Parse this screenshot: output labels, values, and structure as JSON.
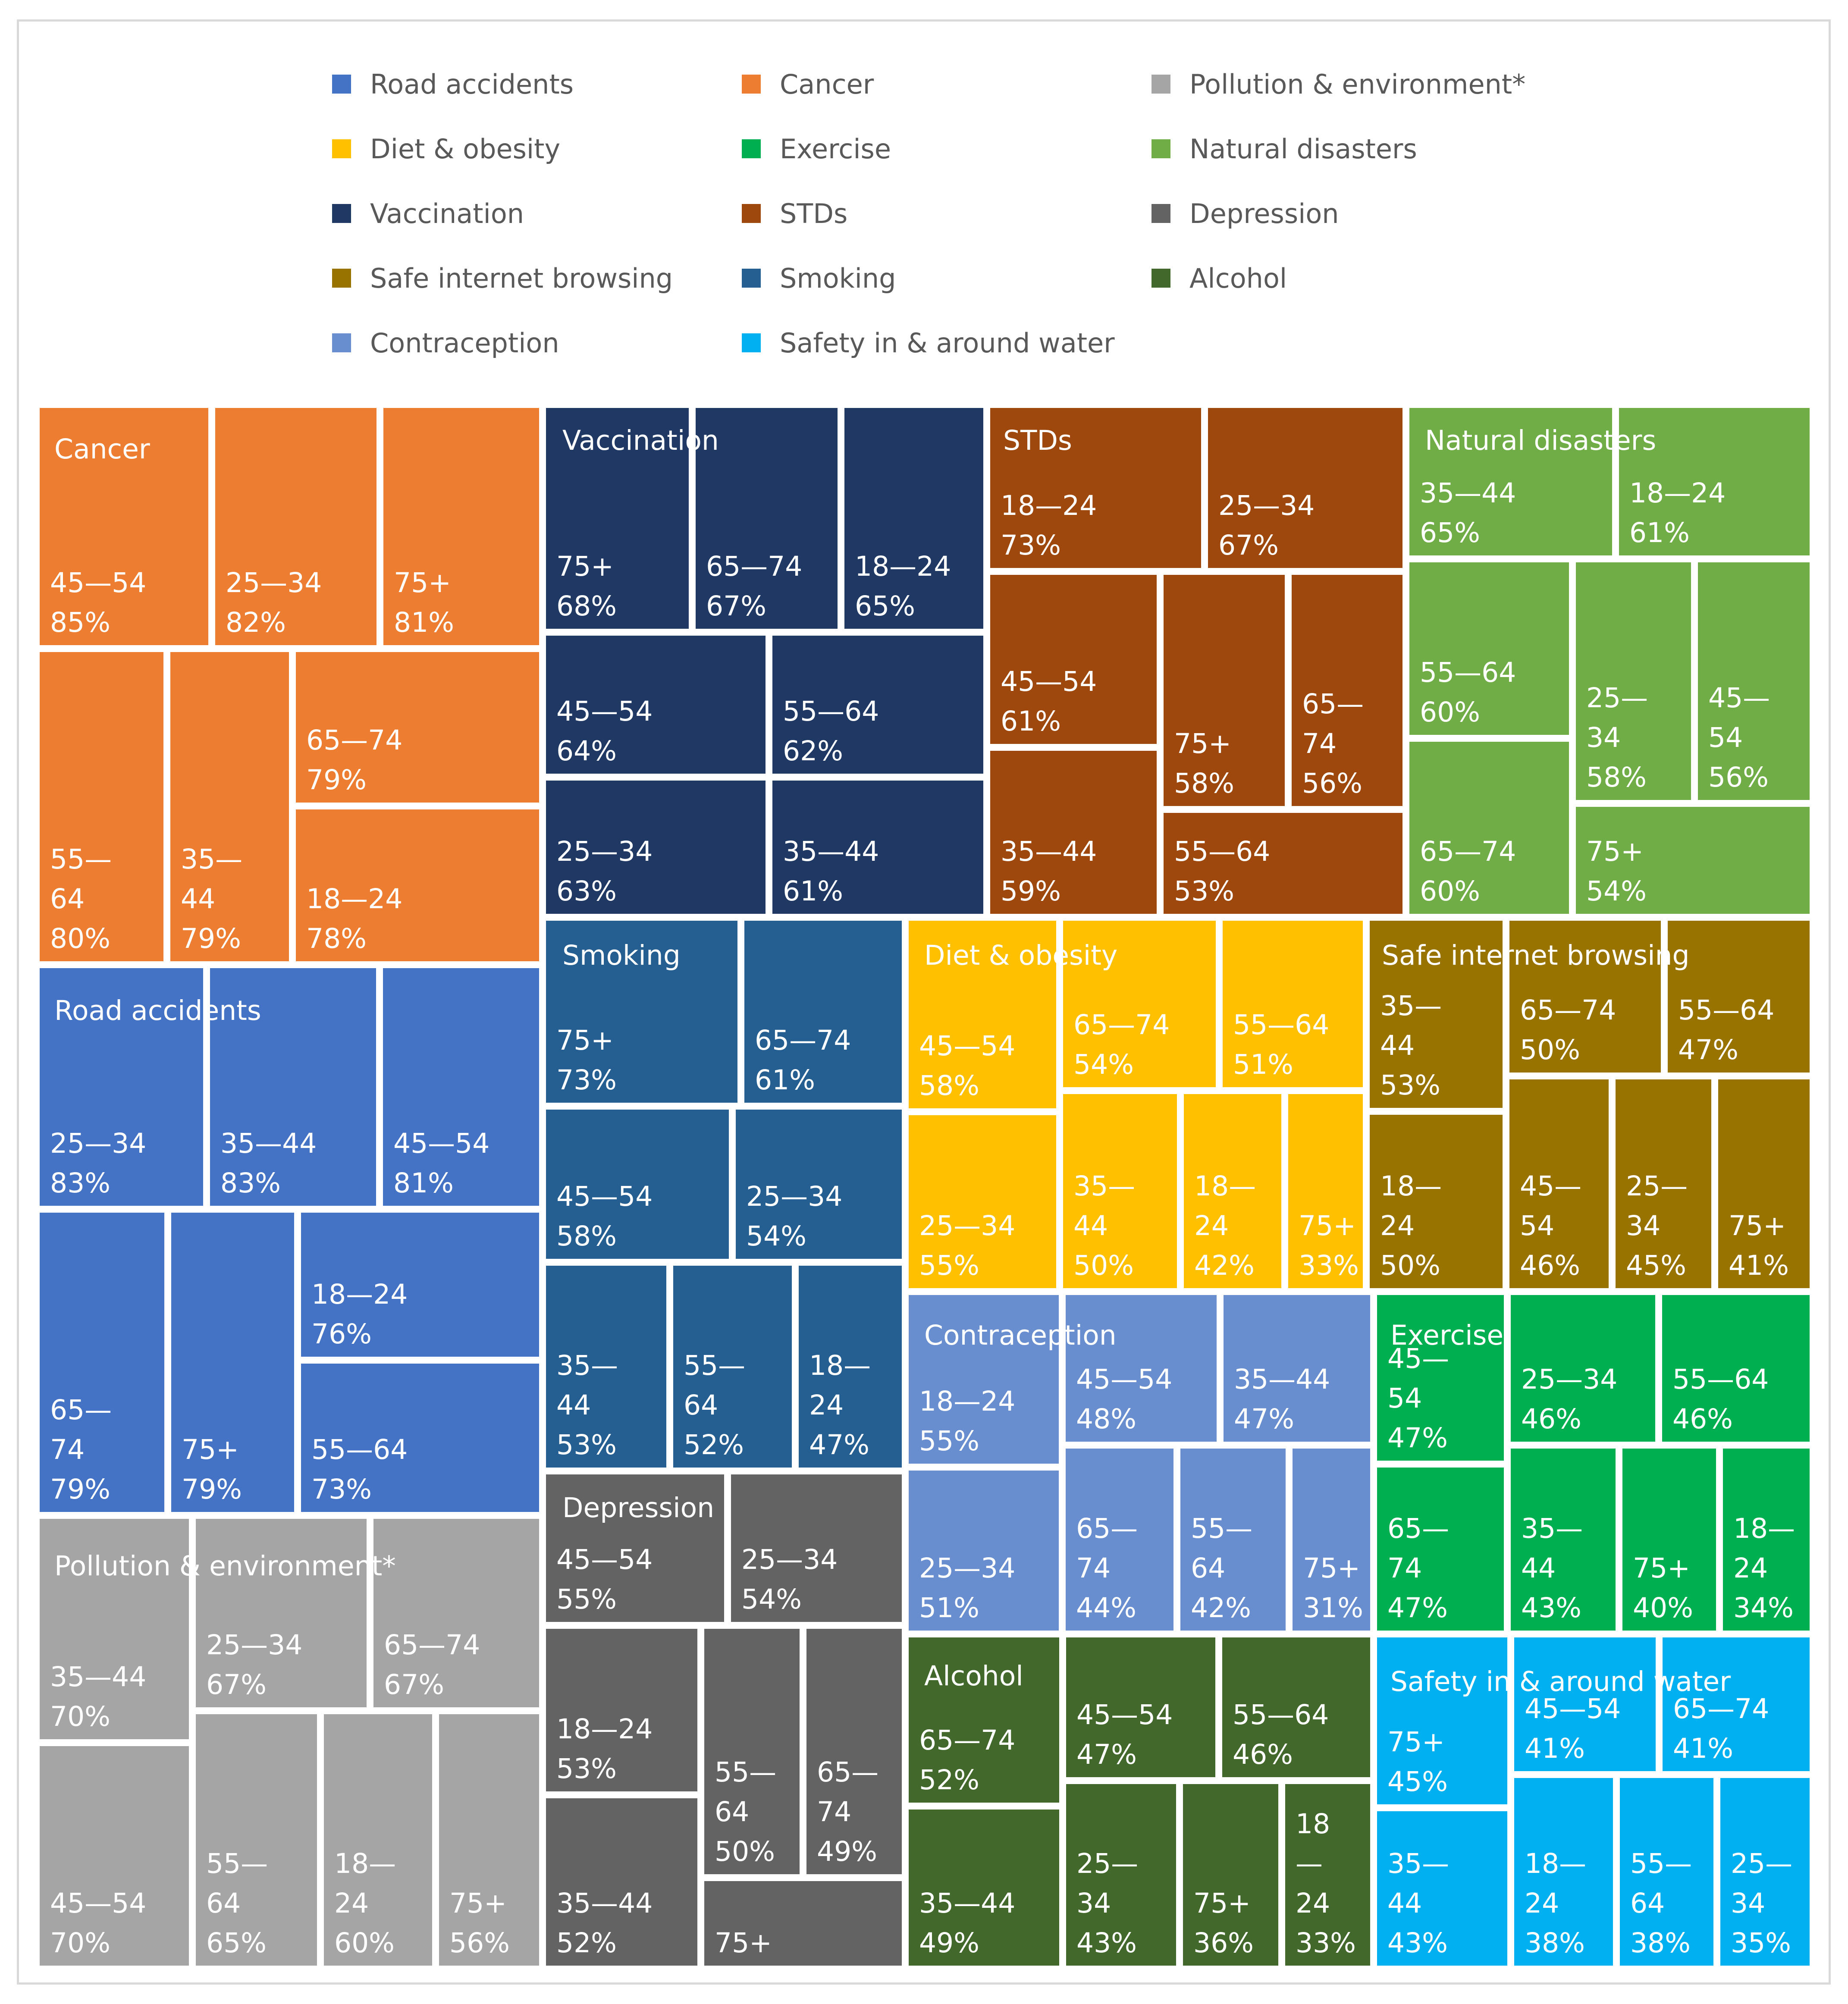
{
  "legend": [
    {
      "label": "Road accidents",
      "color": "#4472c4"
    },
    {
      "label": "Cancer",
      "color": "#ed7d31"
    },
    {
      "label": "Pollution & environment*",
      "color": "#a5a5a5"
    },
    {
      "label": "Diet & obesity",
      "color": "#ffc000"
    },
    {
      "label": "Exercise",
      "color": "#00b050"
    },
    {
      "label": "Natural disasters",
      "color": "#70ad47"
    },
    {
      "label": "Vaccination",
      "color": "#203864"
    },
    {
      "label": "STDs",
      "color": "#9e480e"
    },
    {
      "label": "Depression",
      "color": "#636363"
    },
    {
      "label": "Safe internet browsing",
      "color": "#997300"
    },
    {
      "label": "Smoking",
      "color": "#255e91"
    },
    {
      "label": "Alcohol",
      "color": "#43682b"
    },
    {
      "label": "Contraception",
      "color": "#698ed0"
    },
    {
      "label": "Safety in & around water",
      "color": "#00b0f0"
    }
  ],
  "chart_data": {
    "type": "treemap",
    "title": "",
    "unit": "%",
    "groups": [
      {
        "name": "Cancer",
        "color": "#ed7d31",
        "items": [
          {
            "label": "45—54",
            "value": 85
          },
          {
            "label": "25—34",
            "value": 82
          },
          {
            "label": "75+",
            "value": 81
          },
          {
            "label": "55—64",
            "value": 80
          },
          {
            "label": "35—44",
            "value": 79
          },
          {
            "label": "65—74",
            "value": 79
          },
          {
            "label": "18—24",
            "value": 78
          }
        ]
      },
      {
        "name": "Road accidents",
        "color": "#4472c4",
        "items": [
          {
            "label": "25—34",
            "value": 83
          },
          {
            "label": "35—44",
            "value": 83
          },
          {
            "label": "45—54",
            "value": 81
          },
          {
            "label": "65—74",
            "value": 79
          },
          {
            "label": "75+",
            "value": 79
          },
          {
            "label": "18—24",
            "value": 76
          },
          {
            "label": "55—64",
            "value": 73
          }
        ]
      },
      {
        "name": "Pollution & environment*",
        "color": "#a5a5a5",
        "items": [
          {
            "label": "35—44",
            "value": 70
          },
          {
            "label": "25—34",
            "value": 67
          },
          {
            "label": "65—74",
            "value": 67
          },
          {
            "label": "45—54",
            "value": 70
          },
          {
            "label": "55—64",
            "value": 65
          },
          {
            "label": "18—24",
            "value": 60
          },
          {
            "label": "75+",
            "value": 56
          }
        ]
      },
      {
        "name": "Vaccination",
        "color": "#203864",
        "items": [
          {
            "label": "75+",
            "value": 68
          },
          {
            "label": "65—74",
            "value": 67
          },
          {
            "label": "18—24",
            "value": 65
          },
          {
            "label": "45—54",
            "value": 64
          },
          {
            "label": "55—64",
            "value": 62
          },
          {
            "label": "25—34",
            "value": 63
          },
          {
            "label": "35—44",
            "value": 61
          }
        ]
      },
      {
        "name": "Smoking",
        "color": "#255e91",
        "items": [
          {
            "label": "75+",
            "value": 73
          },
          {
            "label": "65—74",
            "value": 61
          },
          {
            "label": "45—54",
            "value": 58
          },
          {
            "label": "25—34",
            "value": 54
          },
          {
            "label": "35—44",
            "value": 53
          },
          {
            "label": "55—64",
            "value": 52
          },
          {
            "label": "18—24",
            "value": 47
          }
        ]
      },
      {
        "name": "Depression",
        "color": "#636363",
        "items": [
          {
            "label": "45—54",
            "value": 55
          },
          {
            "label": "25—34",
            "value": 54
          },
          {
            "label": "18—24",
            "value": 53
          },
          {
            "label": "55—64",
            "value": 50
          },
          {
            "label": "65—74",
            "value": 49
          },
          {
            "label": "35—44",
            "value": 52
          },
          {
            "label": "75+",
            "value": null
          }
        ]
      },
      {
        "name": "STDs",
        "color": "#9e480e",
        "items": [
          {
            "label": "18—24",
            "value": 73
          },
          {
            "label": "25—34",
            "value": 67
          },
          {
            "label": "45—54",
            "value": 61
          },
          {
            "label": "75+",
            "value": 58
          },
          {
            "label": "65—74",
            "value": 56
          },
          {
            "label": "35—44",
            "value": 59
          },
          {
            "label": "55—64",
            "value": 53
          }
        ]
      },
      {
        "name": "Natural disasters",
        "color": "#70ad47",
        "items": [
          {
            "label": "35—44",
            "value": 65
          },
          {
            "label": "18—24",
            "value": 61
          },
          {
            "label": "55—64",
            "value": 60
          },
          {
            "label": "25—34",
            "value": 58
          },
          {
            "label": "45—54",
            "value": 56
          },
          {
            "label": "65—74",
            "value": 60
          },
          {
            "label": "75+",
            "value": 54
          }
        ]
      },
      {
        "name": "Diet & obesity",
        "color": "#ffc000",
        "items": [
          {
            "label": "45—54",
            "value": 58
          },
          {
            "label": "65—74",
            "value": 54
          },
          {
            "label": "55—64",
            "value": 51
          },
          {
            "label": "25—34",
            "value": 55
          },
          {
            "label": "35—44",
            "value": 50
          },
          {
            "label": "18—24",
            "value": 42
          },
          {
            "label": "75+",
            "value": 33
          }
        ]
      },
      {
        "name": "Safe internet browsing",
        "color": "#997300",
        "items": [
          {
            "label": "35—44",
            "value": 53
          },
          {
            "label": "65—74",
            "value": 50
          },
          {
            "label": "55—64",
            "value": 47
          },
          {
            "label": "18—24",
            "value": 50
          },
          {
            "label": "45—54",
            "value": 46
          },
          {
            "label": "25—34",
            "value": 45
          },
          {
            "label": "75+",
            "value": 41
          }
        ]
      },
      {
        "name": "Contraception",
        "color": "#698ed0",
        "items": [
          {
            "label": "18—24",
            "value": 55
          },
          {
            "label": "45—54",
            "value": 48
          },
          {
            "label": "35—44",
            "value": 47
          },
          {
            "label": "25—34",
            "value": 51
          },
          {
            "label": "65—74",
            "value": 44
          },
          {
            "label": "55—64",
            "value": 42
          },
          {
            "label": "75+",
            "value": 31
          }
        ]
      },
      {
        "name": "Exercise",
        "color": "#00b050",
        "items": [
          {
            "label": "45—54",
            "value": 47
          },
          {
            "label": "25—34",
            "value": 46
          },
          {
            "label": "55—64",
            "value": 46
          },
          {
            "label": "65—74",
            "value": 47
          },
          {
            "label": "35—44",
            "value": 43
          },
          {
            "label": "75+",
            "value": 40
          },
          {
            "label": "18—24",
            "value": 34
          }
        ]
      },
      {
        "name": "Alcohol",
        "color": "#43682b",
        "items": [
          {
            "label": "65—74",
            "value": 52
          },
          {
            "label": "45—54",
            "value": 47
          },
          {
            "label": "55—64",
            "value": 46
          },
          {
            "label": "35—44",
            "value": 49
          },
          {
            "label": "25—34",
            "value": 43
          },
          {
            "label": "75+",
            "value": 36
          },
          {
            "label": "18—24",
            "value": 33
          }
        ]
      },
      {
        "name": "Safety in & around water",
        "color": "#00b0f0",
        "items": [
          {
            "label": "75+",
            "value": 45
          },
          {
            "label": "45—54",
            "value": 41
          },
          {
            "label": "65—74",
            "value": 41
          },
          {
            "label": "35—44",
            "value": 43
          },
          {
            "label": "18—24",
            "value": 38
          },
          {
            "label": "55—64",
            "value": 38
          },
          {
            "label": "25—34",
            "value": 35
          }
        ]
      }
    ]
  }
}
